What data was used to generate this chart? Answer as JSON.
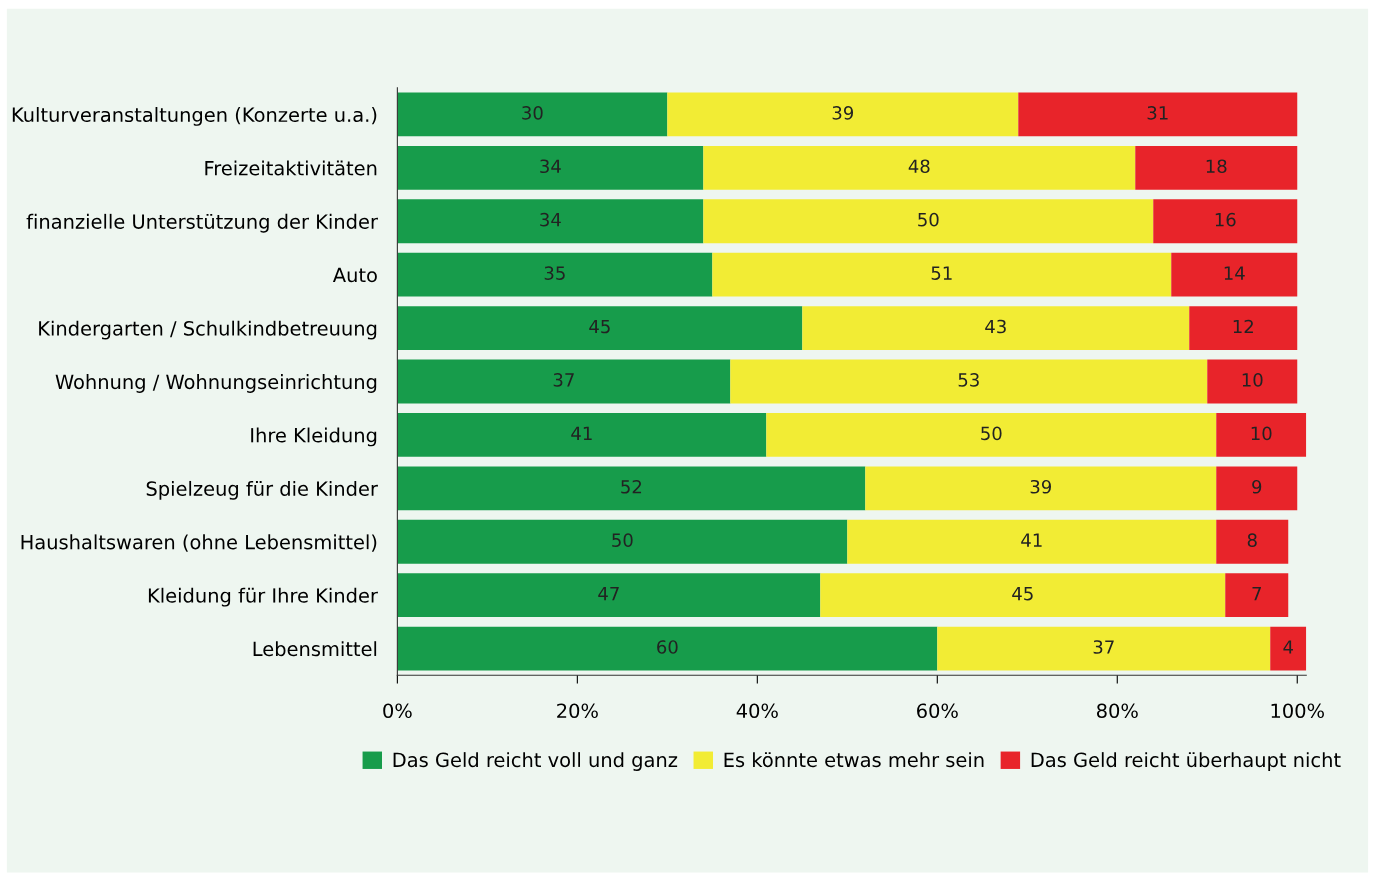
{
  "chart_data": {
    "type": "bar",
    "orientation": "horizontal",
    "stacked": true,
    "data_labels": true,
    "grid": false,
    "legend": "bottom",
    "categories": [
      "Kulturveranstaltungen (Konzerte u.a.)",
      "Freizeitaktivitäten",
      "finanzielle Unterstützung der Kinder",
      "Auto",
      "Kindergarten / Schulkindbetreuung",
      "Wohnung / Wohnungseinrichtung",
      "Ihre Kleidung",
      "Spielzeug für die Kinder",
      "Haushaltswaren (ohne Lebensmittel)",
      "Kleidung für Ihre Kinder",
      "Lebensmittel"
    ],
    "series": [
      {
        "name": "Das Geld reicht voll und ganz",
        "color": "#179c4b",
        "values": [
          30,
          34,
          34,
          35,
          45,
          37,
          41,
          52,
          50,
          47,
          60
        ]
      },
      {
        "name": "Es könnte etwas mehr sein",
        "color": "#f2ec34",
        "values": [
          39,
          48,
          50,
          51,
          43,
          53,
          50,
          39,
          41,
          45,
          37
        ]
      },
      {
        "name": "Das Geld reicht überhaupt nicht",
        "color": "#e8242a",
        "values": [
          31,
          18,
          16,
          14,
          12,
          10,
          10,
          9,
          8,
          7,
          4
        ]
      }
    ],
    "xlim": [
      0,
      101
    ],
    "xticks": [
      {
        "value": 0,
        "label": "0%"
      },
      {
        "value": 20,
        "label": "20%"
      },
      {
        "value": 40,
        "label": "40%"
      },
      {
        "value": 60,
        "label": "60%"
      },
      {
        "value": 80,
        "label": "80%"
      },
      {
        "value": 100,
        "label": "100%"
      }
    ]
  }
}
